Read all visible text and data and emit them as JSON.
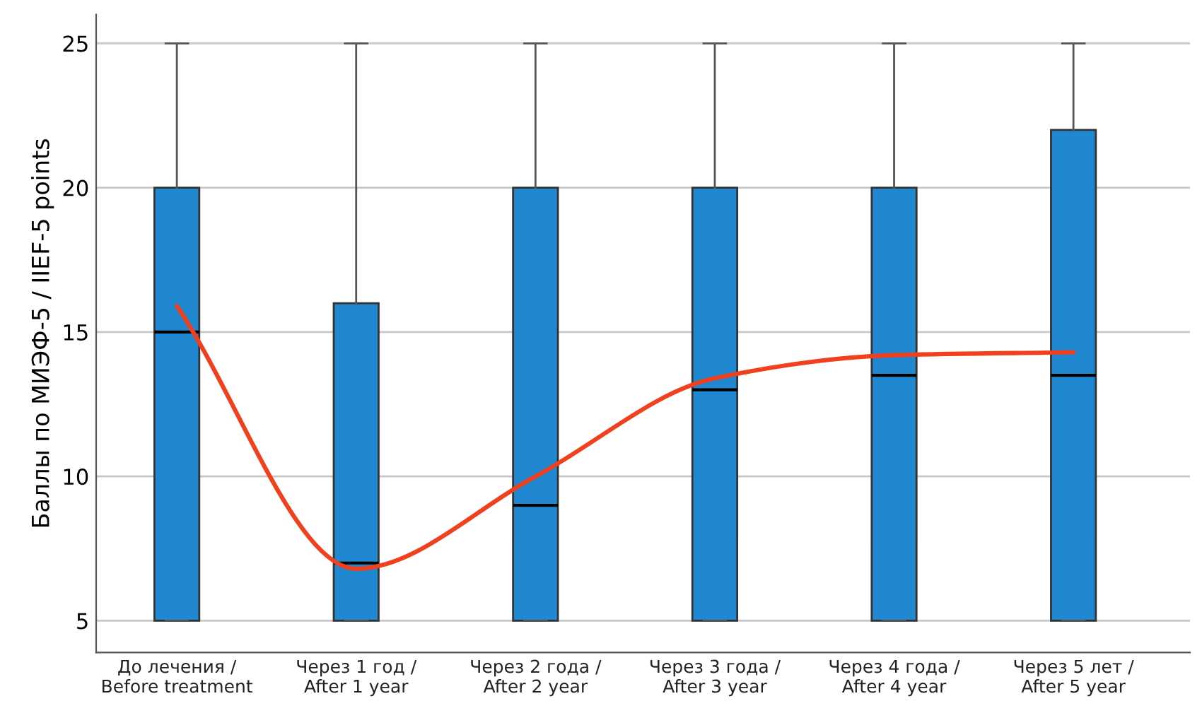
{
  "chart_data": {
    "type": "box",
    "ylabel": "Баллы по МИЭФ-5 / IIEF-5 points",
    "categories": [
      "До лечения /\nBefore treatment",
      "Через 1 год /\nAfter 1 year",
      "Через 2 года /\nAfter 2 year",
      "Через 3 года /\nAfter 3 year",
      "Через 4 года /\nAfter 4 year",
      "Через 5 лет /\nAfter 5 year"
    ],
    "series": [
      {
        "color": "#1f88d0",
        "boxes": [
          {
            "low": 5,
            "q1": 5,
            "median": 15,
            "q3": 20,
            "high": 25
          },
          {
            "low": 5,
            "q1": 5,
            "median": 7,
            "q3": 16,
            "high": 25
          },
          {
            "low": 5,
            "q1": 5,
            "median": 9,
            "q3": 20,
            "high": 25
          },
          {
            "low": 5,
            "q1": 5,
            "median": 13,
            "q3": 20,
            "high": 25
          },
          {
            "low": 5,
            "q1": 5,
            "median": 13.5,
            "q3": 20,
            "high": 25
          },
          {
            "low": 5,
            "q1": 5,
            "median": 13.5,
            "q3": 22,
            "high": 25
          }
        ]
      },
      {
        "type": "line",
        "color": "#f0401e",
        "values": [
          15.9,
          6.8,
          10.0,
          13.4,
          14.2,
          14.3
        ]
      }
    ],
    "ylim": [
      3.9,
      26
    ],
    "yticks": [
      5,
      10,
      15,
      20,
      25
    ],
    "grid": "y",
    "legend": false
  }
}
